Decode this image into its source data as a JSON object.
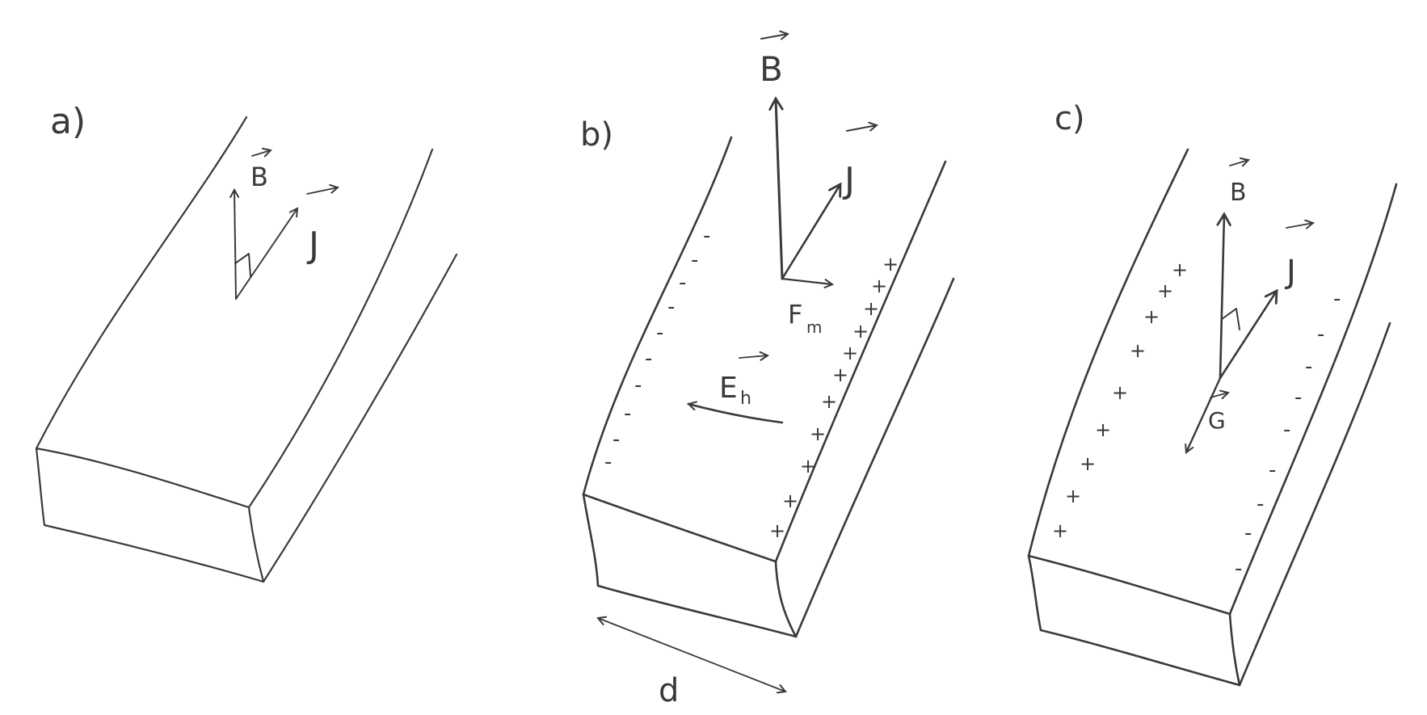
{
  "figure": {
    "colors": {
      "ink": "#3a3a3a",
      "paper": "#ffffff"
    },
    "panels": [
      {
        "label": "a)",
        "vectors": {
          "magnetic_field": "B",
          "current_density": "J"
        }
      },
      {
        "label": "b)",
        "vectors": {
          "magnetic_field": "B",
          "current_density": "J",
          "magnetic_force": "F",
          "magnetic_force_subscript": "m",
          "hall_field": "E",
          "hall_field_subscript": "h"
        },
        "charges": {
          "left_edge": "-",
          "right_edge": "+"
        },
        "dimension_label": "d"
      },
      {
        "label": "c)",
        "vectors": {
          "magnetic_field": "B",
          "current_density": "J",
          "hall_field": "G"
        },
        "charges": {
          "left_edge": "+",
          "right_edge": "-"
        }
      }
    ]
  }
}
